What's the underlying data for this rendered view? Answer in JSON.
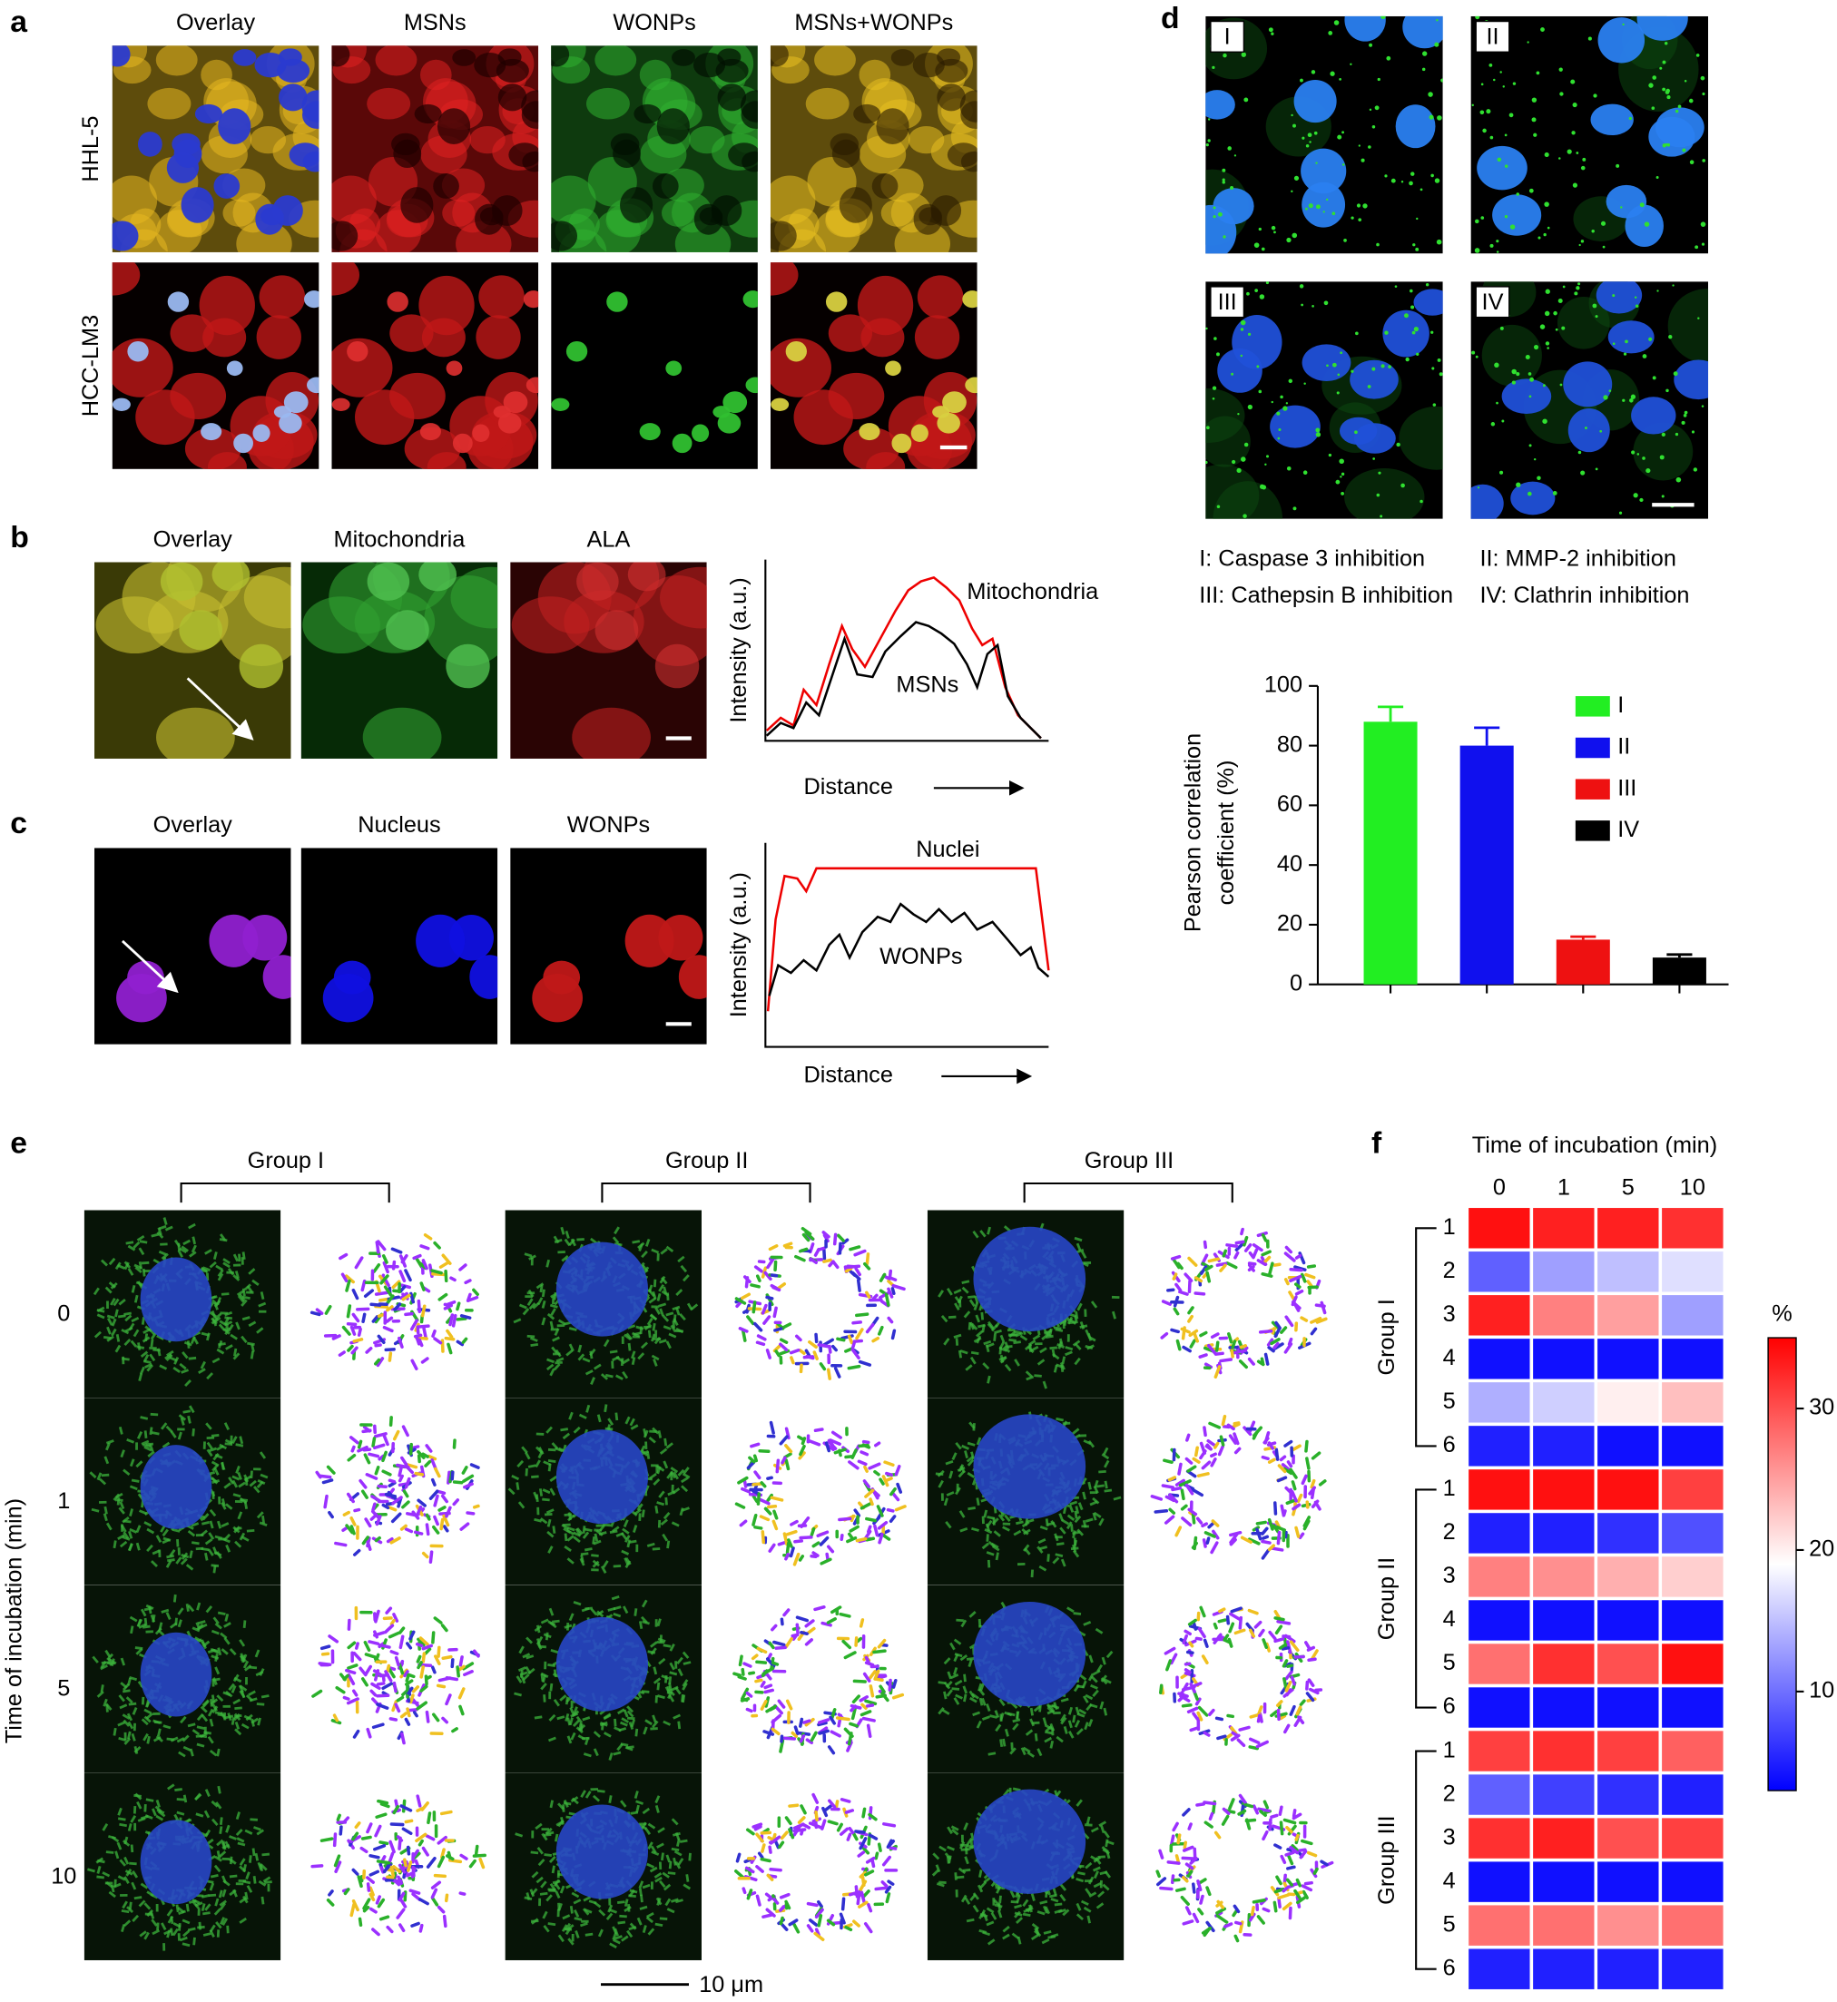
{
  "figure": {
    "panel_a": {
      "letter": "a",
      "columns": [
        "Overlay",
        "MSNs",
        "WONPs",
        "MSNs+WONPs"
      ],
      "rows": [
        "HHL-5",
        "HCC-LM3"
      ]
    },
    "panel_b": {
      "letter": "b",
      "columns": [
        "Overlay",
        "Mitochondria",
        "ALA"
      ],
      "curve_labels": [
        "Mitochondria",
        "MSNs"
      ],
      "xlabel": "Distance",
      "ylabel": "Intensity (a.u.)"
    },
    "panel_c": {
      "letter": "c",
      "columns": [
        "Overlay",
        "Nucleus",
        "WONPs"
      ],
      "curve_labels": [
        "Nuclei",
        "WONPs"
      ],
      "xlabel": "Distance",
      "ylabel": "Intensity (a.u.)"
    },
    "panel_d": {
      "letter": "d",
      "image_labels": [
        "I",
        "II",
        "III",
        "IV"
      ],
      "notes": [
        "I: Caspase 3 inhibition",
        "II: MMP-2 inhibition",
        "III: Cathepsin B inhibition",
        "IV: Clathrin inhibition"
      ]
    },
    "panel_e": {
      "letter": "e",
      "groups": [
        "Group I",
        "Group II",
        "Group III"
      ],
      "times": [
        "0",
        "1",
        "5",
        "10"
      ],
      "ylabel": "Time of incubation (min)",
      "scale_bar": "10 μm"
    },
    "panel_f": {
      "letter": "f"
    }
  },
  "chart_data": [
    {
      "type": "bar",
      "categories": [
        "I",
        "II",
        "III",
        "IV"
      ],
      "colors": [
        "#22ee22",
        "#1010ee",
        "#ee1111",
        "#000000"
      ],
      "values": [
        88,
        80,
        15,
        9
      ],
      "errors": [
        5,
        6,
        1,
        1
      ],
      "ylabel": [
        "Pearson correlation",
        "coefficient (%)"
      ],
      "ylim": [
        0,
        100
      ],
      "yticks": [
        0,
        20,
        40,
        60,
        80,
        100
      ]
    },
    {
      "type": "heatmap",
      "title": "Time of incubation (min)",
      "x": [
        "0",
        "1",
        "5",
        "10"
      ],
      "groups": [
        "Group I",
        "Group II",
        "Group III"
      ],
      "rows": [
        "1",
        "2",
        "3",
        "4",
        "5",
        "6"
      ],
      "values": [
        [
          34,
          33,
          33,
          32
        ],
        [
          9,
          13,
          15,
          17
        ],
        [
          33,
          27,
          25,
          13
        ],
        [
          4,
          4,
          4,
          4
        ],
        [
          14,
          16,
          20,
          23
        ],
        [
          5,
          5,
          4,
          4
        ],
        [
          34,
          34,
          34,
          31
        ],
        [
          5,
          5,
          6,
          8
        ],
        [
          27,
          26,
          24,
          22
        ],
        [
          4,
          4,
          4,
          4
        ],
        [
          28,
          32,
          30,
          34
        ],
        [
          4,
          4,
          4,
          4
        ],
        [
          31,
          32,
          31,
          29
        ],
        [
          9,
          7,
          6,
          5
        ],
        [
          32,
          33,
          30,
          31
        ],
        [
          4,
          4,
          4,
          4
        ],
        [
          28,
          28,
          26,
          28
        ],
        [
          5,
          5,
          5,
          5
        ]
      ],
      "colorbar_label": "%",
      "zlim": [
        3,
        35
      ],
      "zticks": [
        10,
        20,
        30
      ],
      "colormap": [
        "#0000ff",
        "#ffffff",
        "#ff0000"
      ]
    }
  ]
}
